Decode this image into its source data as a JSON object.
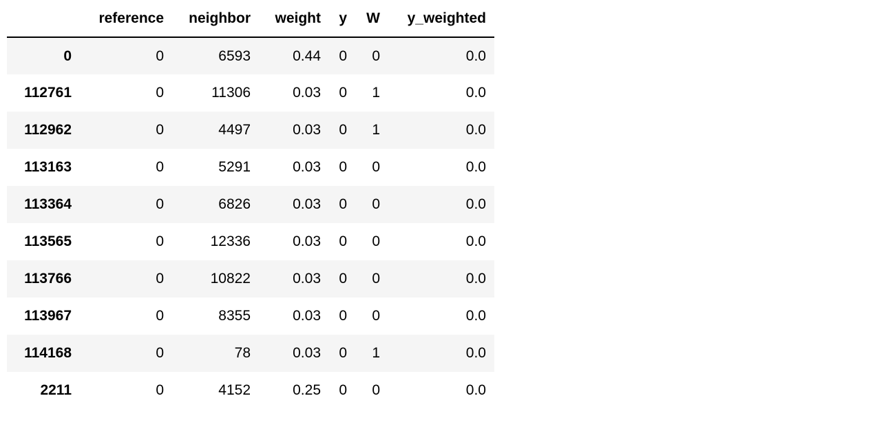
{
  "table": {
    "columns": {
      "index": "",
      "reference": "reference",
      "neighbor": "neighbor",
      "weight": "weight",
      "y": "y",
      "W": "W",
      "y_weighted": "y_weighted"
    },
    "rows": [
      {
        "index": "0",
        "reference": "0",
        "neighbor": "6593",
        "weight": "0.44",
        "y": "0",
        "W": "0",
        "y_weighted": "0.0"
      },
      {
        "index": "112761",
        "reference": "0",
        "neighbor": "11306",
        "weight": "0.03",
        "y": "0",
        "W": "1",
        "y_weighted": "0.0"
      },
      {
        "index": "112962",
        "reference": "0",
        "neighbor": "4497",
        "weight": "0.03",
        "y": "0",
        "W": "1",
        "y_weighted": "0.0"
      },
      {
        "index": "113163",
        "reference": "0",
        "neighbor": "5291",
        "weight": "0.03",
        "y": "0",
        "W": "0",
        "y_weighted": "0.0"
      },
      {
        "index": "113364",
        "reference": "0",
        "neighbor": "6826",
        "weight": "0.03",
        "y": "0",
        "W": "0",
        "y_weighted": "0.0"
      },
      {
        "index": "113565",
        "reference": "0",
        "neighbor": "12336",
        "weight": "0.03",
        "y": "0",
        "W": "0",
        "y_weighted": "0.0"
      },
      {
        "index": "113766",
        "reference": "0",
        "neighbor": "10822",
        "weight": "0.03",
        "y": "0",
        "W": "0",
        "y_weighted": "0.0"
      },
      {
        "index": "113967",
        "reference": "0",
        "neighbor": "8355",
        "weight": "0.03",
        "y": "0",
        "W": "0",
        "y_weighted": "0.0"
      },
      {
        "index": "114168",
        "reference": "0",
        "neighbor": "78",
        "weight": "0.03",
        "y": "0",
        "W": "1",
        "y_weighted": "0.0"
      },
      {
        "index": "2211",
        "reference": "0",
        "neighbor": "4152",
        "weight": "0.25",
        "y": "0",
        "W": "0",
        "y_weighted": "0.0"
      }
    ]
  },
  "colors": {
    "stripe": "#f5f5f5",
    "header_rule": "#000000"
  }
}
